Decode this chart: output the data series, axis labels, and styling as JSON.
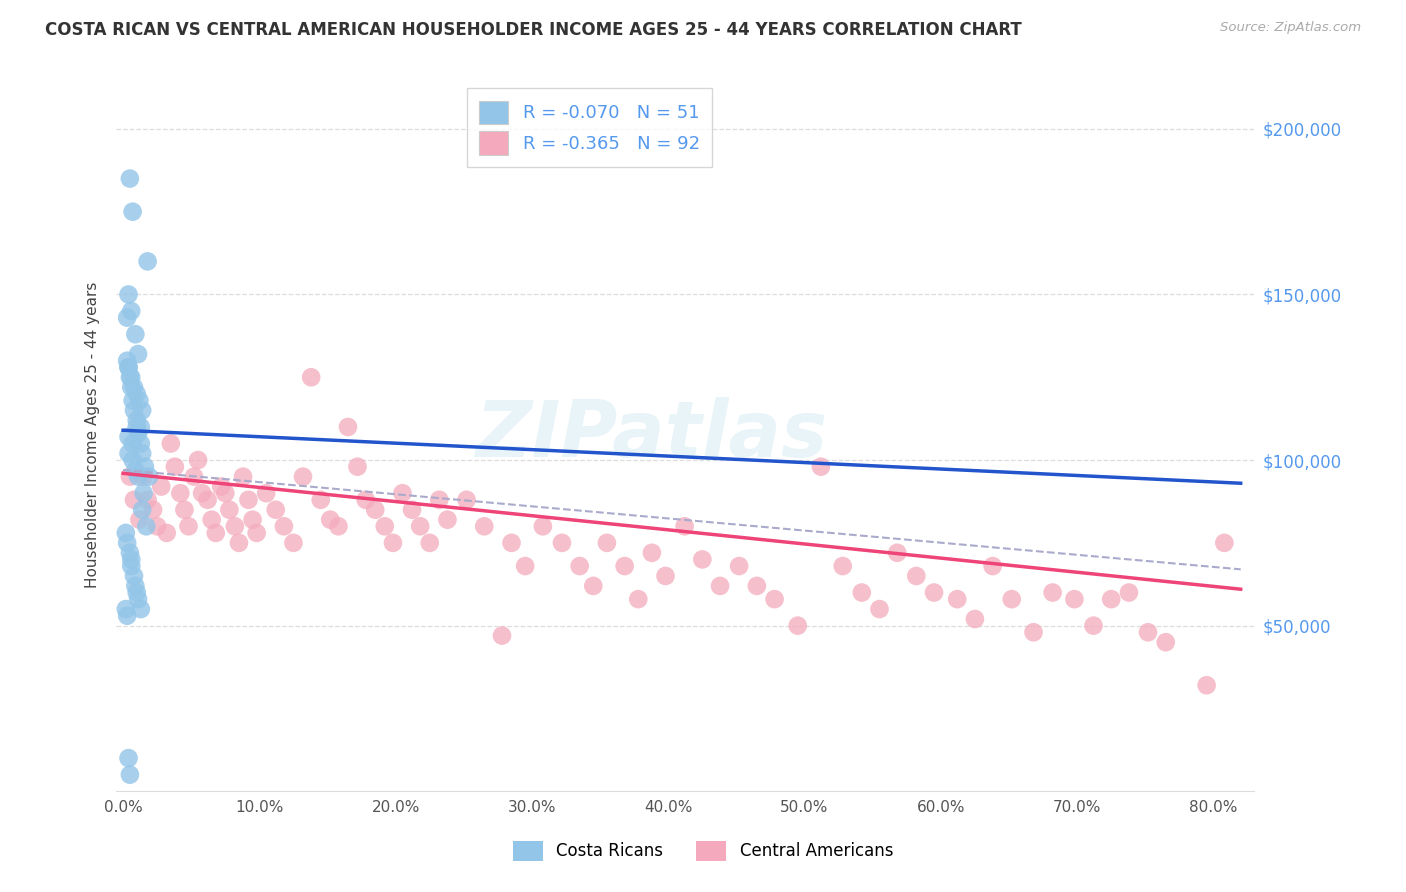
{
  "title": "COSTA RICAN VS CENTRAL AMERICAN HOUSEHOLDER INCOME AGES 25 - 44 YEARS CORRELATION CHART",
  "source": "Source: ZipAtlas.com",
  "ylabel": "Householder Income Ages 25 - 44 years",
  "xlabel_ticks": [
    "0.0%",
    "10.0%",
    "20.0%",
    "30.0%",
    "40.0%",
    "50.0%",
    "60.0%",
    "70.0%",
    "80.0%"
  ],
  "xlabel_vals": [
    0.0,
    0.1,
    0.2,
    0.3,
    0.4,
    0.5,
    0.6,
    0.7,
    0.8
  ],
  "ylabel_ticks": [
    "$50,000",
    "$100,000",
    "$150,000",
    "$200,000"
  ],
  "ylabel_vals": [
    50000,
    100000,
    150000,
    200000
  ],
  "ylim": [
    0,
    215000
  ],
  "xlim": [
    -0.005,
    0.83
  ],
  "legend_r1_text": "R = -0.070   N = 51",
  "legend_r2_text": "R = -0.365   N = 92",
  "blue_color": "#92C5E8",
  "pink_color": "#F4AABC",
  "trendline_blue": "#2255CC",
  "trendline_pink": "#EE4477",
  "trendline_dash_color": "#AAAACC",
  "background_color": "#FFFFFF",
  "watermark_text": "ZIPatlas",
  "grid_color": "#DDDDDD",
  "right_tick_color": "#5599EE",
  "blue_trend_x0": 0.0,
  "blue_trend_y0": 109000,
  "blue_trend_x1": 0.82,
  "blue_trend_y1": 93000,
  "pink_trend_x0": 0.0,
  "pink_trend_y0": 96000,
  "pink_trend_x1": 0.82,
  "pink_trend_y1": 61000,
  "dash_trend_x0": 0.0,
  "dash_trend_y0": 97000,
  "dash_trend_x1": 0.82,
  "dash_trend_y1": 67000,
  "costa_rican_x": [
    0.005,
    0.007,
    0.018,
    0.004,
    0.006,
    0.003,
    0.009,
    0.011,
    0.004,
    0.006,
    0.008,
    0.01,
    0.012,
    0.014,
    0.01,
    0.013,
    0.004,
    0.007,
    0.004,
    0.007,
    0.009,
    0.011,
    0.003,
    0.004,
    0.005,
    0.006,
    0.007,
    0.008,
    0.01,
    0.011,
    0.013,
    0.014,
    0.016,
    0.019,
    0.015,
    0.014,
    0.017,
    0.002,
    0.003,
    0.005,
    0.006,
    0.006,
    0.008,
    0.009,
    0.01,
    0.011,
    0.013,
    0.002,
    0.003,
    0.004,
    0.005
  ],
  "costa_rican_y": [
    185000,
    175000,
    160000,
    150000,
    145000,
    143000,
    138000,
    132000,
    128000,
    125000,
    122000,
    120000,
    118000,
    115000,
    112000,
    110000,
    107000,
    105000,
    102000,
    100000,
    97000,
    95000,
    130000,
    128000,
    125000,
    122000,
    118000,
    115000,
    110000,
    108000,
    105000,
    102000,
    98000,
    95000,
    90000,
    85000,
    80000,
    78000,
    75000,
    72000,
    70000,
    68000,
    65000,
    62000,
    60000,
    58000,
    55000,
    55000,
    53000,
    10000,
    5000
  ],
  "central_american_x": [
    0.005,
    0.008,
    0.012,
    0.015,
    0.018,
    0.022,
    0.025,
    0.028,
    0.032,
    0.035,
    0.038,
    0.042,
    0.045,
    0.048,
    0.052,
    0.055,
    0.058,
    0.062,
    0.065,
    0.068,
    0.072,
    0.075,
    0.078,
    0.082,
    0.085,
    0.088,
    0.092,
    0.095,
    0.098,
    0.105,
    0.112,
    0.118,
    0.125,
    0.132,
    0.138,
    0.145,
    0.152,
    0.158,
    0.165,
    0.172,
    0.178,
    0.185,
    0.192,
    0.198,
    0.205,
    0.212,
    0.218,
    0.225,
    0.232,
    0.238,
    0.252,
    0.265,
    0.278,
    0.285,
    0.295,
    0.308,
    0.322,
    0.335,
    0.345,
    0.355,
    0.368,
    0.378,
    0.388,
    0.398,
    0.412,
    0.425,
    0.438,
    0.452,
    0.465,
    0.478,
    0.495,
    0.512,
    0.528,
    0.542,
    0.555,
    0.568,
    0.582,
    0.595,
    0.612,
    0.625,
    0.638,
    0.652,
    0.668,
    0.682,
    0.698,
    0.712,
    0.725,
    0.738,
    0.752,
    0.765,
    0.795,
    0.808
  ],
  "central_american_y": [
    95000,
    88000,
    82000,
    95000,
    88000,
    85000,
    80000,
    92000,
    78000,
    105000,
    98000,
    90000,
    85000,
    80000,
    95000,
    100000,
    90000,
    88000,
    82000,
    78000,
    92000,
    90000,
    85000,
    80000,
    75000,
    95000,
    88000,
    82000,
    78000,
    90000,
    85000,
    80000,
    75000,
    95000,
    125000,
    88000,
    82000,
    80000,
    110000,
    98000,
    88000,
    85000,
    80000,
    75000,
    90000,
    85000,
    80000,
    75000,
    88000,
    82000,
    88000,
    80000,
    47000,
    75000,
    68000,
    80000,
    75000,
    68000,
    62000,
    75000,
    68000,
    58000,
    72000,
    65000,
    80000,
    70000,
    62000,
    68000,
    62000,
    58000,
    50000,
    98000,
    68000,
    60000,
    55000,
    72000,
    65000,
    60000,
    58000,
    52000,
    68000,
    58000,
    48000,
    60000,
    58000,
    50000,
    58000,
    60000,
    48000,
    45000,
    32000,
    75000
  ]
}
